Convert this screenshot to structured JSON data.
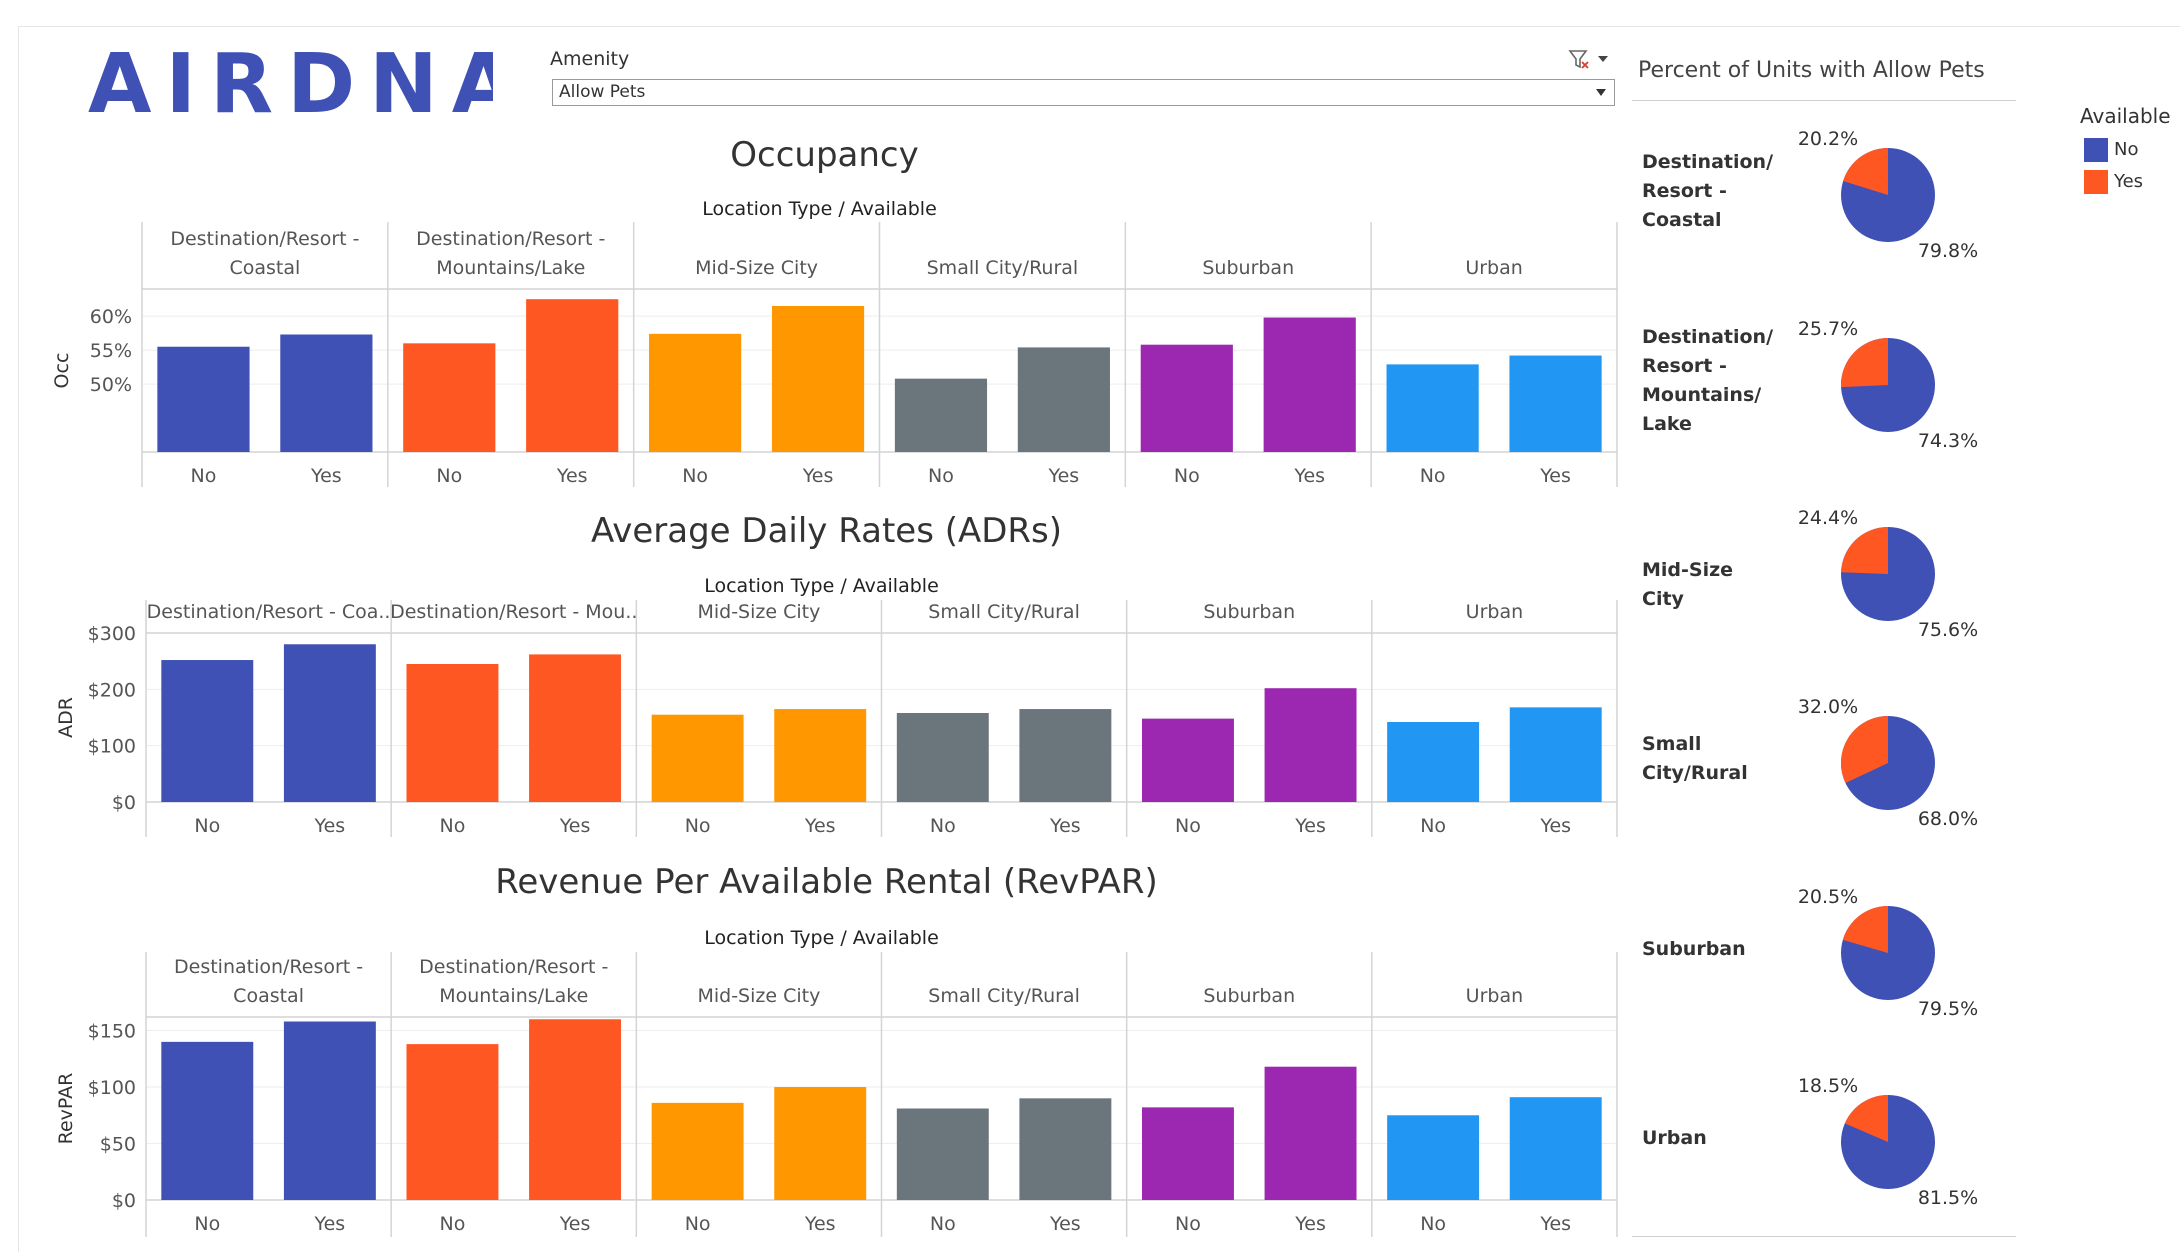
{
  "header": {
    "logo_text": "AIRDNA",
    "amenity_label": "Amenity",
    "amenity_value": "Allow Pets"
  },
  "colors": {
    "coastal": "#3f51b5",
    "mountains": "#ff5722",
    "midsize": "#ff9800",
    "small": "#6b757c",
    "suburban": "#9c27b0",
    "urban": "#2196f3",
    "pie_no": "#3f51b5",
    "pie_yes": "#ff5722"
  },
  "chart_data": [
    {
      "type": "bar",
      "title": "Occupancy",
      "header": "Location Type  /  Available",
      "ylabel": "Occ",
      "ylim": [
        40,
        64
      ],
      "yticks": [
        50,
        55,
        60
      ],
      "ytick_labels": [
        "50%",
        "55%",
        "60%"
      ],
      "groups": [
        "Destination/Resort - Coastal",
        "Destination/Resort - Mountains/Lake",
        "Mid-Size City",
        "Small City/Rural",
        "Suburban",
        "Urban"
      ],
      "group_labels": [
        [
          "Destination/Resort -",
          "Coastal"
        ],
        [
          "Destination/Resort -",
          "Mountains/Lake"
        ],
        [
          "Mid-Size City"
        ],
        [
          "Small City/Rural"
        ],
        [
          "Suburban"
        ],
        [
          "Urban"
        ]
      ],
      "categories": [
        "No",
        "Yes"
      ],
      "series": [
        {
          "group": "Destination/Resort - Coastal",
          "values": [
            55.5,
            57.3
          ]
        },
        {
          "group": "Destination/Resort - Mountains/Lake",
          "values": [
            56.0,
            62.5
          ]
        },
        {
          "group": "Mid-Size City",
          "values": [
            57.4,
            61.5
          ]
        },
        {
          "group": "Small City/Rural",
          "values": [
            50.8,
            55.4
          ]
        },
        {
          "group": "Suburban",
          "values": [
            55.8,
            59.8
          ]
        },
        {
          "group": "Urban",
          "values": [
            52.9,
            54.2
          ]
        }
      ]
    },
    {
      "type": "bar",
      "title": "Average Daily Rates (ADRs)",
      "header": "Location Type  /  Available",
      "ylabel": "ADR",
      "ylim": [
        0,
        300
      ],
      "yticks": [
        0,
        100,
        200,
        300
      ],
      "ytick_labels": [
        "$0",
        "$100",
        "$200",
        "$300"
      ],
      "groups": [
        "Destination/Resort - Coastal",
        "Destination/Resort - Mountains/Lake",
        "Mid-Size City",
        "Small City/Rural",
        "Suburban",
        "Urban"
      ],
      "group_labels": [
        [
          "Destination/Resort - Coa.."
        ],
        [
          "Destination/Resort - Mou.."
        ],
        [
          "Mid-Size City"
        ],
        [
          "Small City/Rural"
        ],
        [
          "Suburban"
        ],
        [
          "Urban"
        ]
      ],
      "categories": [
        "No",
        "Yes"
      ],
      "series": [
        {
          "group": "Destination/Resort - Coastal",
          "values": [
            252,
            280
          ]
        },
        {
          "group": "Destination/Resort - Mountains/Lake",
          "values": [
            245,
            262
          ]
        },
        {
          "group": "Mid-Size City",
          "values": [
            155,
            165
          ]
        },
        {
          "group": "Small City/Rural",
          "values": [
            158,
            165
          ]
        },
        {
          "group": "Suburban",
          "values": [
            148,
            202
          ]
        },
        {
          "group": "Urban",
          "values": [
            142,
            168
          ]
        }
      ]
    },
    {
      "type": "bar",
      "title": "Revenue Per Available Rental (RevPAR)",
      "header": "Location Type  /  Available",
      "ylabel": "RevPAR",
      "ylim": [
        0,
        162
      ],
      "yticks": [
        0,
        50,
        100,
        150
      ],
      "ytick_labels": [
        "$0",
        "$50",
        "$100",
        "$150"
      ],
      "groups": [
        "Destination/Resort - Coastal",
        "Destination/Resort - Mountains/Lake",
        "Mid-Size City",
        "Small City/Rural",
        "Suburban",
        "Urban"
      ],
      "group_labels": [
        [
          "Destination/Resort -",
          "Coastal"
        ],
        [
          "Destination/Resort -",
          "Mountains/Lake"
        ],
        [
          "Mid-Size City"
        ],
        [
          "Small City/Rural"
        ],
        [
          "Suburban"
        ],
        [
          "Urban"
        ]
      ],
      "categories": [
        "No",
        "Yes"
      ],
      "series": [
        {
          "group": "Destination/Resort - Coastal",
          "values": [
            140,
            158
          ]
        },
        {
          "group": "Destination/Resort - Mountains/Lake",
          "values": [
            138,
            160
          ]
        },
        {
          "group": "Mid-Size City",
          "values": [
            86,
            100
          ]
        },
        {
          "group": "Small City/Rural",
          "values": [
            81,
            90
          ]
        },
        {
          "group": "Suburban",
          "values": [
            82,
            118
          ]
        },
        {
          "group": "Urban",
          "values": [
            75,
            91
          ]
        }
      ]
    },
    {
      "type": "pie",
      "title": "Percent of Units with Allow Pets",
      "legend_title": "Available",
      "legend": [
        "No",
        "Yes"
      ],
      "pies": [
        {
          "label": [
            "Destination/",
            "Resort -",
            "Coastal"
          ],
          "no": 79.8,
          "yes": 20.2,
          "no_label": "79.8%",
          "yes_label": "20.2%"
        },
        {
          "label": [
            "Destination/",
            "Resort -",
            "Mountains/",
            "Lake"
          ],
          "no": 74.3,
          "yes": 25.7,
          "no_label": "74.3%",
          "yes_label": "25.7%"
        },
        {
          "label": [
            "Mid-Size City"
          ],
          "no": 75.6,
          "yes": 24.4,
          "no_label": "75.6%",
          "yes_label": "24.4%"
        },
        {
          "label": [
            "Small",
            "City/Rural"
          ],
          "no": 68.0,
          "yes": 32.0,
          "no_label": "68.0%",
          "yes_label": "32.0%"
        },
        {
          "label": [
            "Suburban"
          ],
          "no": 79.5,
          "yes": 20.5,
          "no_label": "79.5%",
          "yes_label": "20.5%"
        },
        {
          "label": [
            "Urban"
          ],
          "no": 81.5,
          "yes": 18.5,
          "no_label": "81.5%",
          "yes_label": "18.5%"
        }
      ]
    }
  ]
}
